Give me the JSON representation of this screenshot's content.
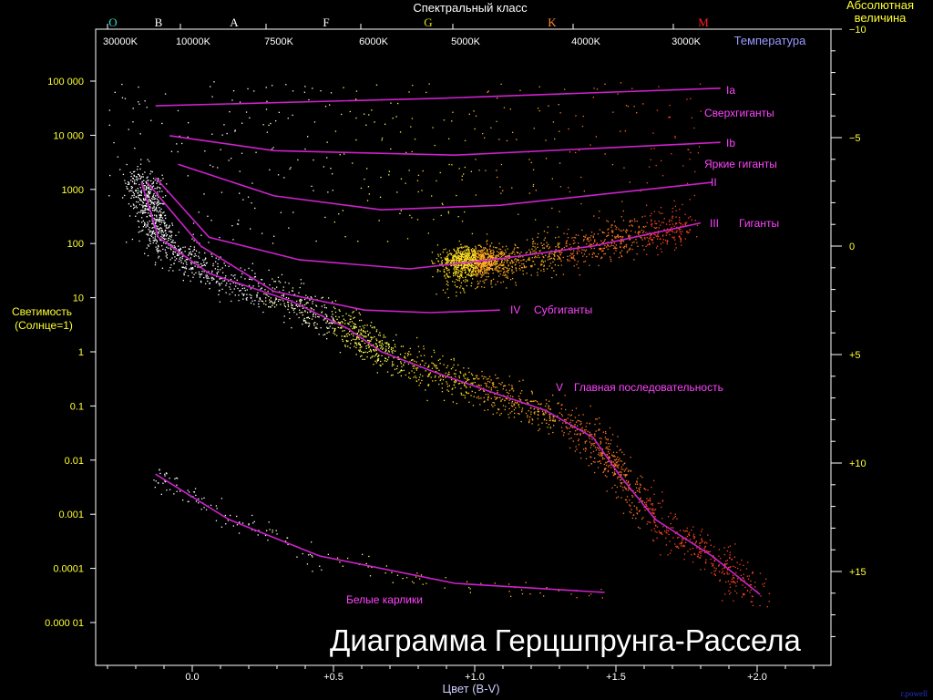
{
  "chart_data": {
    "type": "scatter",
    "title": "Диаграмма Герцшпрунга-Рассела",
    "xlabel": "Цвет (B-V)",
    "ylabel": "Светимость (Солнце=1)",
    "ylabel_lines": [
      "Светимость",
      "(Солнце=1)"
    ],
    "top_axis_title": "Спектральный класс",
    "top_axis_temperature_label": "Температура",
    "right_axis_label_lines": [
      "Абсолютная",
      "величина"
    ],
    "credit": "r.powell",
    "xlim": [
      -0.34,
      2.26
    ],
    "ylim": [
      3e-06,
      1000000
    ],
    "yscale": "log",
    "grid": false,
    "x_ticks": [
      {
        "value": 0.0,
        "label": "0.0"
      },
      {
        "value": 0.5,
        "label": "+0.5"
      },
      {
        "value": 1.0,
        "label": "+1.0"
      },
      {
        "value": 1.5,
        "label": "+1.5"
      },
      {
        "value": 2.0,
        "label": "+2.0"
      }
    ],
    "y_ticks": [
      {
        "value": 100000,
        "label": "100 000"
      },
      {
        "value": 10000,
        "label": "10 000"
      },
      {
        "value": 1000,
        "label": "1000"
      },
      {
        "value": 100,
        "label": "100"
      },
      {
        "value": 10,
        "label": "10"
      },
      {
        "value": 1,
        "label": "1"
      },
      {
        "value": 0.1,
        "label": "0.1"
      },
      {
        "value": 0.01,
        "label": "0.01"
      },
      {
        "value": 0.001,
        "label": "0.001"
      },
      {
        "value": 0.0001,
        "label": "0.0001"
      },
      {
        "value": 1e-05,
        "label": "0.000 01"
      }
    ],
    "magnitude_ticks": [
      {
        "value": -10,
        "label": "−10"
      },
      {
        "value": -5,
        "label": "−5"
      },
      {
        "value": 0,
        "label": "0"
      },
      {
        "value": 5,
        "label": "+5"
      },
      {
        "value": 10,
        "label": "+10"
      },
      {
        "value": 15,
        "label": "+15"
      }
    ],
    "temperature_ticks": [
      "30000K",
      "10000K",
      "7500K",
      "6000K",
      "5000K",
      "4000K",
      "3000K"
    ],
    "spectral_classes": [
      {
        "label": "O",
        "color": "#33ddcc"
      },
      {
        "label": "B",
        "color": "#ffffff"
      },
      {
        "label": "A",
        "color": "#ffffff"
      },
      {
        "label": "F",
        "color": "#ffffff"
      },
      {
        "label": "G",
        "color": "#dddd22"
      },
      {
        "label": "K",
        "color": "#ff8822"
      },
      {
        "label": "M",
        "color": "#ff2222"
      }
    ],
    "series": [
      {
        "name": "Ia",
        "label": "Сверхгиганты",
        "points": [
          [
            -0.13,
            35000
          ],
          [
            0.87,
            48000
          ],
          [
            1.87,
            74000
          ]
        ]
      },
      {
        "name": "Ib",
        "points": [
          [
            -0.08,
            9800
          ],
          [
            0.29,
            5200
          ],
          [
            0.93,
            4300
          ],
          [
            1.87,
            7400
          ]
        ]
      },
      {
        "name": "II",
        "label": "Яркие гиганты",
        "points": [
          [
            -0.05,
            2900
          ],
          [
            0.29,
            760
          ],
          [
            0.67,
            420
          ],
          [
            1.09,
            510
          ],
          [
            1.84,
            1350
          ]
        ]
      },
      {
        "name": "III",
        "label": "Гиганты",
        "points": [
          [
            -0.13,
            1650
          ],
          [
            0.06,
            130
          ],
          [
            0.38,
            50
          ],
          [
            0.77,
            34
          ],
          [
            1.06,
            50
          ],
          [
            1.42,
            90
          ],
          [
            1.8,
            240
          ]
        ]
      },
      {
        "name": "IV",
        "label": "Субгиганты",
        "points": [
          [
            -0.16,
            1350
          ],
          [
            0.03,
            90
          ],
          [
            0.29,
            13
          ],
          [
            0.61,
            5.9
          ],
          [
            0.84,
            5.3
          ],
          [
            1.09,
            5.9
          ]
        ]
      },
      {
        "name": "V",
        "label": "Главная последовательность",
        "points": [
          [
            -0.18,
            1350
          ],
          [
            -0.12,
            130
          ],
          [
            0.06,
            28
          ],
          [
            0.35,
            8.7
          ],
          [
            0.55,
            2.7
          ],
          [
            0.67,
            1.0
          ],
          [
            0.87,
            0.4
          ],
          [
            1.06,
            0.18
          ],
          [
            1.25,
            0.083
          ],
          [
            1.42,
            0.026
          ],
          [
            1.51,
            0.0055
          ],
          [
            1.64,
            0.0008
          ],
          [
            1.84,
            0.00017
          ],
          [
            2.01,
            3.3e-05
          ]
        ]
      },
      {
        "name": "",
        "label": "Белые карлики",
        "points": [
          [
            -0.13,
            0.0055
          ],
          [
            0.13,
            0.0008
          ],
          [
            0.45,
            0.00017
          ],
          [
            0.93,
            5.3e-05
          ],
          [
            1.46,
            3.6e-05
          ]
        ]
      }
    ],
    "colors": {
      "curve": "#cc22cc",
      "curve_label": "#ff44ff",
      "axis_text": "#ffff33",
      "temperature_text": "#9999ff",
      "axis_line": "#ffffff",
      "title": "#ffffff",
      "credit": "#2233cc"
    }
  }
}
